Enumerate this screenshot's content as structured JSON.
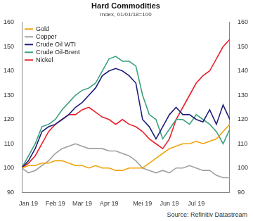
{
  "chart_data": {
    "type": "line",
    "title": "Hard Commodities",
    "subtitle": "Index, 01/01/18=100",
    "source": "Source: Refinitiv Datastream",
    "categories": [
      null,
      "Jan 19",
      null,
      null,
      null,
      "Feb 19",
      null,
      null,
      null,
      "Mar 19",
      null,
      null,
      null,
      "Apr 19",
      null,
      null,
      null,
      null,
      "Mei 19",
      null,
      null,
      null,
      "Jun 19",
      null,
      null,
      null,
      "Jul 19",
      null,
      null,
      null,
      null,
      null
    ],
    "series": [
      {
        "name": "Gold",
        "color": "#f0a30a",
        "values": [
          100,
          101,
          101,
          102,
          102,
          103,
          103,
          102,
          101,
          101,
          100,
          101,
          100,
          100,
          99,
          99,
          100,
          100,
          100,
          102,
          104,
          106,
          108,
          109,
          110,
          110,
          111,
          110,
          111,
          112,
          115,
          118
        ]
      },
      {
        "name": "Copper",
        "color": "#a0a0a0",
        "values": [
          100,
          98,
          99,
          101,
          103,
          106,
          108,
          109,
          110,
          109,
          108,
          108,
          108,
          107,
          107,
          106,
          105,
          103,
          100,
          99,
          98,
          99,
          98,
          100,
          100,
          101,
          100,
          99,
          99,
          97,
          96,
          96
        ]
      },
      {
        "name": "Crude Oil WTI",
        "color": "#1f1f7a",
        "values": [
          100,
          103,
          108,
          115,
          117,
          118,
          120,
          122,
          125,
          127,
          130,
          133,
          138,
          140,
          141,
          140,
          138,
          135,
          120,
          117,
          112,
          117,
          122,
          125,
          122,
          122,
          120,
          119,
          124,
          118,
          126,
          120
        ]
      },
      {
        "name": "Crude Oil-Brent",
        "color": "#3aa080",
        "values": [
          100,
          105,
          110,
          117,
          118,
          120,
          124,
          127,
          130,
          132,
          133,
          135,
          140,
          145,
          146,
          144,
          144,
          142,
          130,
          122,
          120,
          112,
          116,
          120,
          120,
          118,
          122,
          120,
          118,
          115,
          110,
          116
        ]
      },
      {
        "name": "Nickel",
        "color": "#e8202a",
        "values": [
          100,
          102,
          105,
          110,
          115,
          118,
          120,
          122,
          122,
          124,
          125,
          123,
          121,
          120,
          118,
          120,
          118,
          117,
          115,
          112,
          110,
          108,
          112,
          120,
          125,
          130,
          135,
          138,
          140,
          145,
          150,
          153
        ]
      }
    ],
    "ylim": [
      90,
      160
    ],
    "yticks": [
      90,
      100,
      110,
      120,
      130,
      140,
      150,
      160
    ],
    "y2lim": [
      90,
      160
    ],
    "y2ticks": [
      90,
      100,
      110,
      120,
      130,
      140,
      150,
      160
    ],
    "grid": false,
    "legend": "top-left"
  }
}
